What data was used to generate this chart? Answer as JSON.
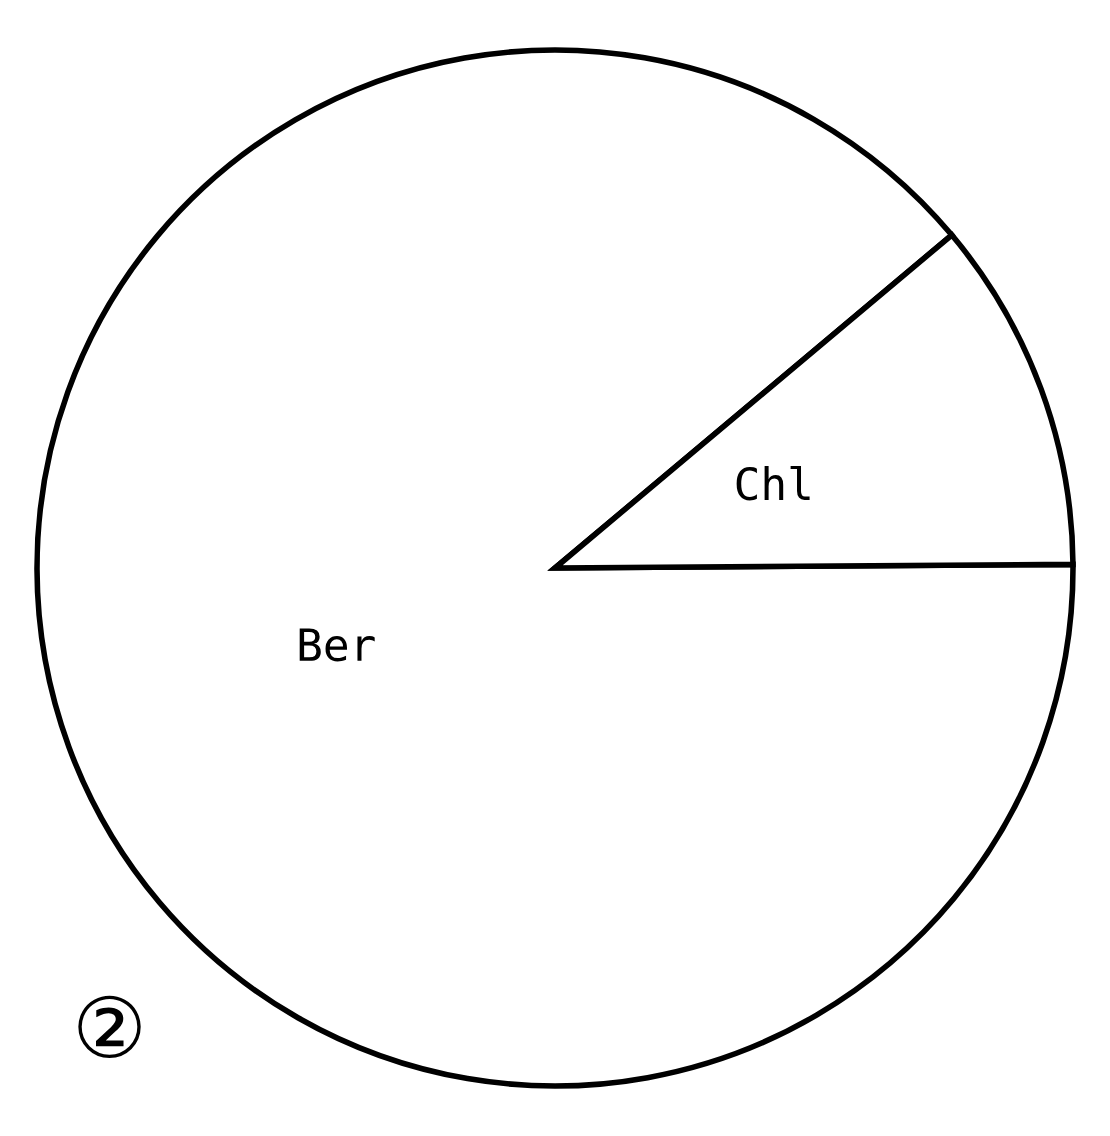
{
  "chart_data": {
    "type": "pie",
    "categories": [
      "Ber",
      "Chl"
    ],
    "values": [
      89,
      11
    ],
    "colors": [
      "#ffffff",
      "#ffffff"
    ],
    "annotations": [
      "②"
    ]
  }
}
